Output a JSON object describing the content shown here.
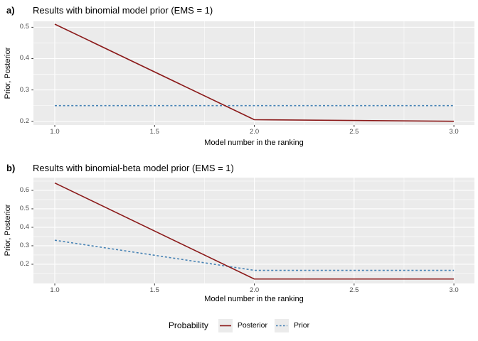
{
  "chart_data": [
    {
      "type": "line",
      "panel": "a",
      "panel_tag": "a)",
      "title": "Results with binomial model prior (EMS = 1)",
      "xlabel": "Model number in the ranking",
      "ylabel": "Prior, Posterior",
      "x": [
        1,
        2,
        3
      ],
      "series": [
        {
          "name": "Posterior",
          "values": [
            0.51,
            0.205,
            0.2
          ],
          "color": "#8B1A1A",
          "linetype": "solid"
        },
        {
          "name": "Prior",
          "values": [
            0.25,
            0.25,
            0.25
          ],
          "color": "#4682B4",
          "linetype": "dashed"
        }
      ],
      "x_ticks": [
        1.0,
        1.5,
        2.0,
        2.5,
        3.0
      ],
      "x_tick_labels": [
        "1.0",
        "1.5",
        "2.0",
        "2.5",
        "3.0"
      ],
      "x_minor_ticks": [
        1.25,
        1.75,
        2.25,
        2.75
      ],
      "y_ticks": [
        0.2,
        0.3,
        0.4,
        0.5
      ],
      "y_tick_labels": [
        "0.2",
        "0.3",
        "0.4",
        "0.5"
      ],
      "y_minor_ticks": [
        0.25,
        0.35,
        0.45
      ],
      "xlim": [
        0.893,
        3.103
      ],
      "ylim": [
        0.188,
        0.519
      ],
      "grid": true,
      "legend_position": "bottom",
      "panel_bg": "#EBEBEB",
      "grid_color": "#FFFFFF"
    },
    {
      "type": "line",
      "panel": "b",
      "panel_tag": "b)",
      "title": "Results with binomial-beta model prior (EMS = 1)",
      "xlabel": "Model number in the ranking",
      "ylabel": "Prior, Posterior",
      "x": [
        1,
        2,
        3
      ],
      "series": [
        {
          "name": "Posterior",
          "values": [
            0.64,
            0.12,
            0.12
          ],
          "color": "#8B1A1A",
          "linetype": "solid"
        },
        {
          "name": "Prior",
          "values": [
            0.33,
            0.167,
            0.167
          ],
          "color": "#4682B4",
          "linetype": "dashed"
        }
      ],
      "x_ticks": [
        1.0,
        1.5,
        2.0,
        2.5,
        3.0
      ],
      "x_tick_labels": [
        "1.0",
        "1.5",
        "2.0",
        "2.5",
        "3.0"
      ],
      "x_minor_ticks": [
        1.25,
        1.75,
        2.25,
        2.75
      ],
      "y_ticks": [
        0.2,
        0.3,
        0.4,
        0.5,
        0.6
      ],
      "y_tick_labels": [
        "0.2",
        "0.3",
        "0.4",
        "0.5",
        "0.6"
      ],
      "y_minor_ticks": [
        0.15,
        0.25,
        0.35,
        0.45,
        0.55,
        0.65
      ],
      "xlim": [
        0.893,
        3.103
      ],
      "ylim": [
        0.096,
        0.669
      ],
      "grid": true,
      "legend_position": "bottom",
      "panel_bg": "#EBEBEB",
      "grid_color": "#FFFFFF"
    }
  ],
  "legend": {
    "title": "Probability",
    "key_fill": "#EBEBEB",
    "items": [
      {
        "label": "Posterior",
        "color": "#8B1A1A",
        "linetype": "solid"
      },
      {
        "label": "Prior",
        "color": "#4682B4",
        "linetype": "dashed"
      }
    ]
  }
}
